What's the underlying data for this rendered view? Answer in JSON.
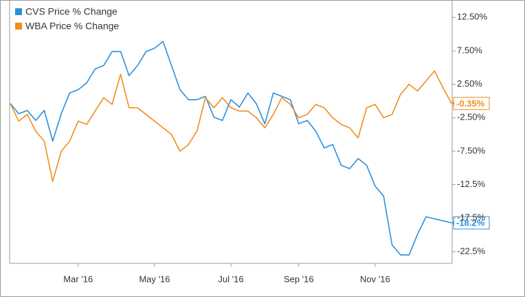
{
  "chart_data": {
    "type": "line",
    "categories": [
      null,
      null,
      null,
      null,
      null,
      null,
      null,
      null,
      "Mar '16",
      null,
      null,
      null,
      null,
      null,
      null,
      null,
      null,
      "May '16",
      null,
      null,
      null,
      null,
      null,
      null,
      null,
      null,
      "Jul '16",
      null,
      null,
      null,
      null,
      null,
      null,
      null,
      "Sep '16",
      null,
      null,
      null,
      null,
      null,
      null,
      null,
      null,
      "Nov '16",
      null,
      null,
      null,
      null,
      null,
      null,
      null,
      null,
      null
    ],
    "series": [
      {
        "name": "CVS Price % Change",
        "color": "#2a8fdc",
        "values": [
          -0.36,
          -1.9,
          -1.4,
          -2.9,
          -1.4,
          -6.0,
          -1.9,
          1.2,
          1.7,
          2.7,
          4.8,
          5.3,
          7.4,
          7.4,
          3.8,
          5.3,
          7.4,
          7.9,
          8.9,
          5.3,
          1.7,
          0.2,
          0.2,
          0.7,
          -2.4,
          -2.9,
          0.2,
          -0.9,
          1.2,
          -0.4,
          -3.4,
          1.2,
          0.7,
          0.2,
          -3.4,
          -2.9,
          -4.5,
          -7.0,
          -6.5,
          -9.6,
          -10.1,
          -8.6,
          -9.6,
          -12.7,
          -14.2,
          -21.5,
          -23.0,
          -23.0,
          -19.9,
          -17.3,
          -17.6,
          -17.9,
          -18.2
        ],
        "value_labels": [
          null,
          null,
          null,
          null,
          null,
          null,
          null,
          null,
          null,
          null,
          null,
          null,
          null,
          null,
          null,
          null,
          null,
          null,
          null,
          null,
          null,
          null,
          null,
          null,
          null,
          null,
          null,
          null,
          null,
          null,
          null,
          null,
          null,
          null,
          null,
          null,
          null,
          null,
          null,
          null,
          null,
          null,
          null,
          null,
          null,
          null,
          null,
          null,
          null,
          null,
          null,
          null,
          "-18.2%"
        ]
      },
      {
        "name": "WBA Price % Change",
        "color": "#f28c1c",
        "values": [
          -0.4,
          -3.0,
          -2.0,
          -4.5,
          -6.0,
          -12.0,
          -7.5,
          -6.0,
          -3.0,
          -3.5,
          -1.5,
          0.5,
          -0.5,
          4.0,
          -1.0,
          -1.0,
          -2.0,
          -3.0,
          -4.0,
          -5.0,
          -7.5,
          -6.5,
          -4.5,
          0.5,
          -1.0,
          0.5,
          -1.0,
          -1.5,
          -1.5,
          -2.5,
          -4.0,
          -2.0,
          0.5,
          -0.5,
          -2.5,
          -2.0,
          -0.5,
          -1.0,
          -2.5,
          -3.5,
          -4.0,
          -5.5,
          -1.0,
          -0.5,
          -2.5,
          -2.0,
          1.0,
          2.5,
          1.5,
          3.0,
          4.5,
          2.0,
          -0.35
        ],
        "value_labels": [
          null,
          null,
          null,
          null,
          null,
          null,
          null,
          null,
          null,
          null,
          null,
          null,
          null,
          null,
          null,
          null,
          null,
          null,
          null,
          null,
          null,
          null,
          null,
          null,
          null,
          null,
          null,
          null,
          null,
          null,
          null,
          null,
          null,
          null,
          null,
          null,
          null,
          null,
          null,
          null,
          null,
          null,
          null,
          null,
          null,
          null,
          null,
          null,
          null,
          null,
          null,
          null,
          "-0.35%"
        ]
      }
    ],
    "ylim": [
      -24.25,
      15.1
    ],
    "yticks": [
      {
        "value": 12.5,
        "label": "12.50%"
      },
      {
        "value": 7.5,
        "label": "7.50%"
      },
      {
        "value": 2.5,
        "label": "2.50%"
      },
      {
        "value": -2.5,
        "label": "-2.50%"
      },
      {
        "value": -7.5,
        "label": "-7.50%"
      },
      {
        "value": -12.5,
        "label": "-12.5%"
      },
      {
        "value": -17.5,
        "label": "-17.5%"
      },
      {
        "value": -22.5,
        "label": "-22.5%"
      }
    ],
    "grid": false,
    "legend": "upper left"
  }
}
